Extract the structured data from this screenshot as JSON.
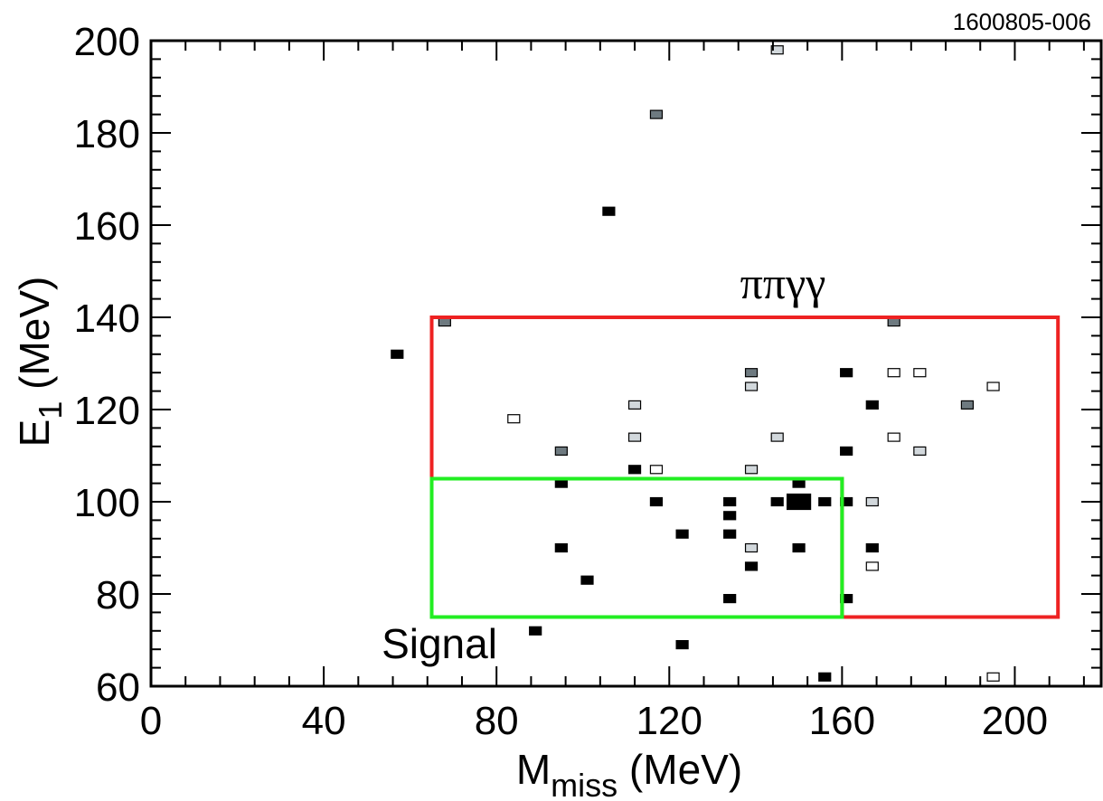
{
  "figure_id": "1600805-006",
  "chart_data": {
    "type": "scatter",
    "title": "",
    "xlabel": {
      "main": "M",
      "sub": "miss",
      "unit": " (MeV)"
    },
    "ylabel": {
      "main": "E",
      "sub": "1",
      "unit": " (MeV)"
    },
    "xlim": [
      0,
      220
    ],
    "ylim": [
      60,
      200
    ],
    "xticks": [
      0,
      40,
      80,
      120,
      160,
      200
    ],
    "yticks": [
      60,
      80,
      100,
      120,
      140,
      160,
      180,
      200
    ],
    "x_minor_step": 8,
    "y_minor_step": 4,
    "grid": false,
    "colors": {
      "black": "#000000",
      "dark_gray": "#6e7a80",
      "light_gray": "#d2d8dc",
      "white": "#ffffff",
      "signal_box": "#22ee22",
      "pipigg_box": "#ee2222"
    },
    "regions": [
      {
        "label": "ππγγ",
        "color": "#ee2222",
        "polygon": [
          [
            65,
            140
          ],
          [
            210,
            140
          ],
          [
            210,
            75
          ],
          [
            160,
            75
          ],
          [
            160,
            105
          ],
          [
            65,
            105
          ]
        ]
      },
      {
        "label": "Signal",
        "color": "#22ee22",
        "polygon": [
          [
            65,
            105
          ],
          [
            160,
            105
          ],
          [
            160,
            75
          ],
          [
            65,
            75
          ]
        ]
      }
    ],
    "series": [
      {
        "style": "black",
        "points": [
          [
            57,
            132
          ],
          [
            106,
            163
          ],
          [
            95,
            104
          ],
          [
            95,
            90
          ],
          [
            101,
            83
          ],
          [
            89,
            72
          ],
          [
            112,
            107
          ],
          [
            117,
            100
          ],
          [
            123,
            93
          ],
          [
            123,
            69
          ],
          [
            134,
            100
          ],
          [
            134,
            97
          ],
          [
            134,
            93
          ],
          [
            134,
            79
          ],
          [
            139,
            86
          ],
          [
            145,
            100
          ],
          [
            150,
            104
          ],
          [
            150,
            90
          ],
          [
            156,
            100
          ],
          [
            156,
            62
          ],
          [
            161,
            128
          ],
          [
            161,
            111
          ],
          [
            161,
            100
          ],
          [
            161,
            79
          ],
          [
            167,
            121
          ],
          [
            167,
            90
          ]
        ]
      },
      {
        "style": "black",
        "size": "large",
        "points": [
          [
            150,
            100
          ]
        ]
      },
      {
        "style": "dark_gray",
        "points": [
          [
            68,
            139
          ],
          [
            95,
            111
          ],
          [
            117,
            184
          ],
          [
            139,
            128
          ],
          [
            172,
            139
          ],
          [
            189,
            121
          ]
        ]
      },
      {
        "style": "light_gray",
        "points": [
          [
            145,
            198
          ],
          [
            112,
            121
          ],
          [
            112,
            114
          ],
          [
            139,
            125
          ],
          [
            139,
            107
          ],
          [
            139,
            90
          ],
          [
            145,
            114
          ],
          [
            167,
            100
          ],
          [
            178,
            111
          ]
        ]
      },
      {
        "style": "white",
        "points": [
          [
            84,
            118
          ],
          [
            117,
            107
          ],
          [
            167,
            86
          ],
          [
            172,
            128
          ],
          [
            172,
            114
          ],
          [
            178,
            128
          ],
          [
            195,
            125
          ],
          [
            195,
            62
          ]
        ]
      }
    ]
  }
}
